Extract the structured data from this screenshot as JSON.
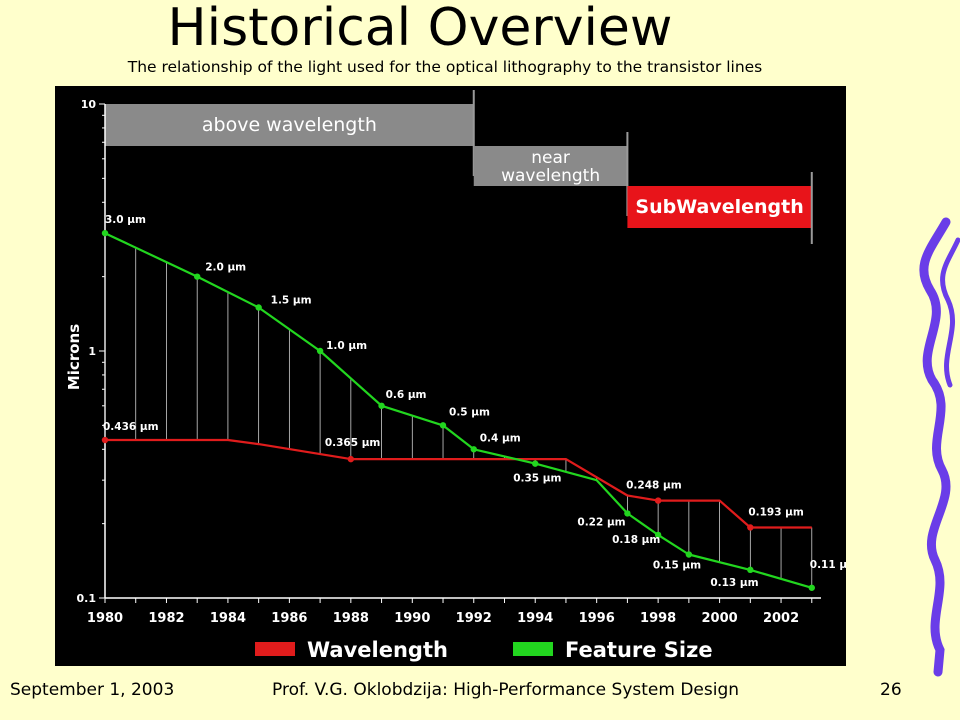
{
  "slide": {
    "title": "Historical Overview",
    "subtitle": "The relationship of the light used for the optical lithography to the transistor lines"
  },
  "footer": {
    "date": "September 1, 2003",
    "credit": "Prof. V.G. Oklobdzija: High-Performance System Design",
    "page": "26"
  },
  "colors": {
    "slide_background": "#ffffcc",
    "chart_background": "#000000",
    "wavelength": "#e01c1c",
    "feature_size": "#22d61f",
    "band_gray": "#8a8a8a",
    "subwavelength_red": "#e8141a",
    "decoration": "#6a3de8"
  },
  "chart_data": {
    "type": "line",
    "y_scale": "log",
    "ylabel": "Microns",
    "xlabel": "",
    "xlim": [
      1980,
      2003.3
    ],
    "ylim": [
      0.1,
      10
    ],
    "x_ticks": [
      "1980",
      "1982",
      "1984",
      "1986",
      "1988",
      "1990",
      "1992",
      "1994",
      "1996",
      "1998",
      "2000",
      "2002"
    ],
    "y_ticks": [
      "0.1",
      "1",
      "10"
    ],
    "grid": false,
    "legend_position": "bottom",
    "legend": [
      "Wavelength",
      "Feature Size"
    ],
    "bands": [
      {
        "label": "above wavelength",
        "x_start": 1980,
        "x_end": 1992,
        "color": "#8a8a8a"
      },
      {
        "label": "near wavelength",
        "x_start": 1992,
        "x_end": 1997,
        "color": "#8a8a8a"
      },
      {
        "label": "SubWavelength",
        "x_start": 1997,
        "x_end": 2003,
        "color": "#e8141a"
      }
    ],
    "series": [
      {
        "name": "Wavelength",
        "x": [
          1980,
          1984,
          1985,
          1988,
          1992,
          1995,
          1997,
          1998,
          2000,
          2001,
          2003
        ],
        "y": [
          0.436,
          0.436,
          0.42,
          0.365,
          0.365,
          0.365,
          0.26,
          0.248,
          0.248,
          0.193,
          0.193
        ],
        "markers": [
          {
            "x": 1980,
            "y": 0.436,
            "label": "0.436 µm"
          },
          {
            "x": 1988,
            "y": 0.365,
            "label": "0.365 µm"
          },
          {
            "x": 1998,
            "y": 0.248,
            "label": "0.248 µm"
          },
          {
            "x": 2001,
            "y": 0.193,
            "label": "0.193 µm"
          }
        ]
      },
      {
        "name": "Feature Size",
        "x": [
          1980,
          1983,
          1985,
          1987,
          1989,
          1991,
          1992,
          1994,
          1996,
          1997,
          1998,
          1999,
          2001,
          2003
        ],
        "y": [
          3.0,
          2.0,
          1.5,
          1.0,
          0.6,
          0.5,
          0.4,
          0.35,
          0.3,
          0.22,
          0.18,
          0.15,
          0.13,
          0.11
        ],
        "markers": [
          {
            "x": 1980,
            "y": 3.0,
            "label": "3.0 µm"
          },
          {
            "x": 1983,
            "y": 2.0,
            "label": "2.0 µm"
          },
          {
            "x": 1985,
            "y": 1.5,
            "label": "1.5 µm"
          },
          {
            "x": 1987,
            "y": 1.0,
            "label": "1.0 µm"
          },
          {
            "x": 1989,
            "y": 0.6,
            "label": "0.6 µm"
          },
          {
            "x": 1991,
            "y": 0.5,
            "label": "0.5 µm"
          },
          {
            "x": 1992,
            "y": 0.4,
            "label": "0.4 µm"
          },
          {
            "x": 1994,
            "y": 0.35,
            "label": "0.35 µm"
          },
          {
            "x": 1997,
            "y": 0.22,
            "label": "0.22 µm"
          },
          {
            "x": 1998,
            "y": 0.18,
            "label": "0.18 µm"
          },
          {
            "x": 1999,
            "y": 0.15,
            "label": "0.15 µm"
          },
          {
            "x": 2001,
            "y": 0.13,
            "label": "0.13 µm"
          },
          {
            "x": 2003,
            "y": 0.11,
            "label": "0.11 µm"
          }
        ]
      }
    ],
    "droplines_x": [
      1980,
      1981,
      1982,
      1983,
      1984,
      1985,
      1986,
      1987,
      1988,
      1989,
      1990,
      1991,
      1992,
      1993,
      1994,
      1995,
      1996,
      1997,
      1998,
      1999,
      2000,
      2001,
      2002,
      2003
    ]
  }
}
